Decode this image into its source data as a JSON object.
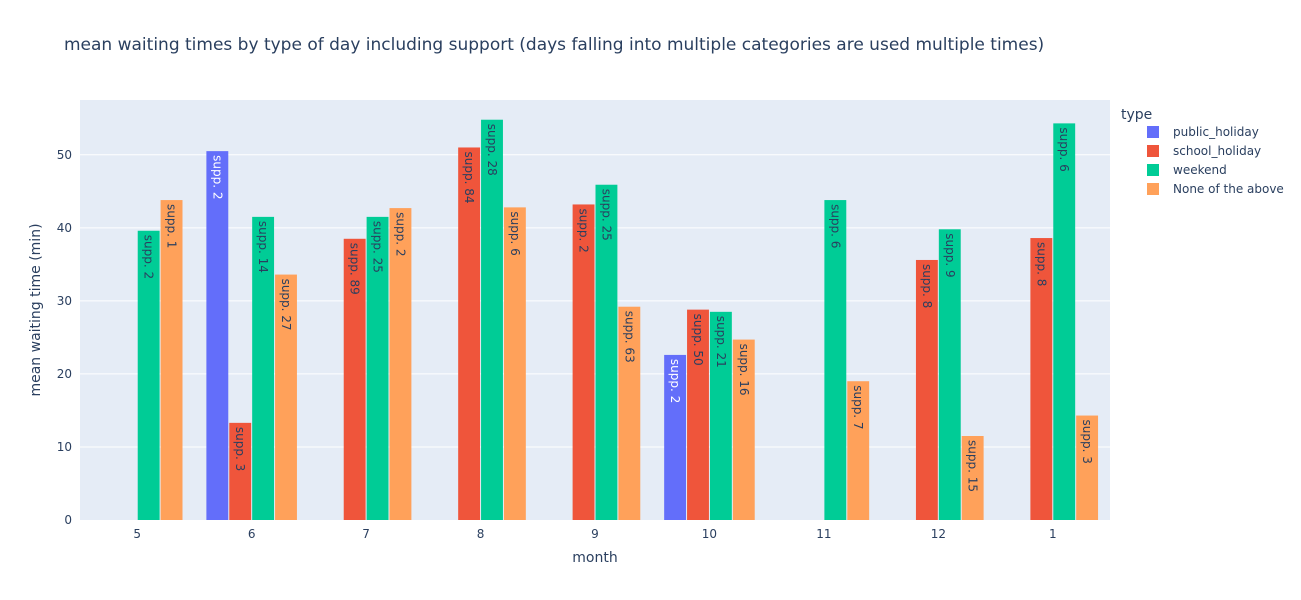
{
  "chart_data": {
    "type": "bar",
    "title": "mean waiting times by type of day including support (days falling into multiple categories are used multiple times)",
    "xlabel": "month",
    "ylabel": "mean waiting time (min)",
    "ylim": [
      0,
      57.5
    ],
    "yticks": [
      0,
      10,
      20,
      30,
      40,
      50
    ],
    "categories": [
      "5",
      "6",
      "7",
      "8",
      "9",
      "10",
      "11",
      "12",
      "1"
    ],
    "legend_title": "type",
    "legend_position": "right",
    "grid": true,
    "series": [
      {
        "name": "public_holiday",
        "color": "#636efa",
        "values": [
          null,
          50.5,
          null,
          null,
          null,
          22.6,
          null,
          null,
          null
        ],
        "labels": [
          null,
          "supp. 2",
          null,
          null,
          null,
          "supp. 2",
          null,
          null,
          null
        ]
      },
      {
        "name": "school_holiday",
        "color": "#ef553b",
        "values": [
          null,
          13.3,
          38.5,
          51.0,
          43.2,
          28.8,
          null,
          35.6,
          38.6
        ],
        "labels": [
          null,
          "supp. 3",
          "supp. 89",
          "supp. 84",
          "supp. 2",
          "supp. 50",
          null,
          "supp. 8",
          "supp. 8"
        ]
      },
      {
        "name": "weekend",
        "color": "#00cc96",
        "values": [
          39.6,
          41.5,
          41.5,
          54.8,
          45.9,
          28.5,
          43.8,
          39.8,
          54.3
        ],
        "labels": [
          "supp. 2",
          "supp. 14",
          "supp. 25",
          "supp. 28",
          "supp. 25",
          "supp. 21",
          "supp. 6",
          "supp. 9",
          "supp. 6"
        ]
      },
      {
        "name": "None of the above",
        "color": "#ffa15a",
        "values": [
          43.8,
          33.6,
          42.7,
          42.8,
          29.2,
          24.7,
          19.0,
          11.5,
          14.3
        ],
        "labels": [
          "supp. 1",
          "supp. 27",
          "supp. 2",
          "supp. 6",
          "supp. 63",
          "supp. 16",
          "supp. 7",
          "supp. 15",
          "supp. 3"
        ]
      }
    ]
  }
}
